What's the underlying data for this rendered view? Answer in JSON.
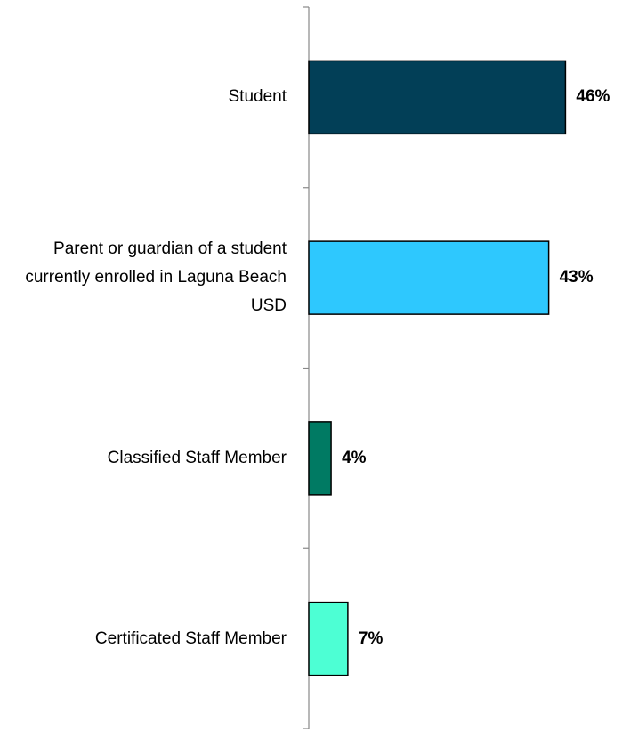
{
  "chart_data": {
    "type": "barh",
    "categories": [
      "Student",
      "Parent or guardian of a student currently enrolled in Laguna Beach USD",
      "Classified Staff Member",
      "Certificated Staff Member"
    ],
    "values": [
      46,
      43,
      4,
      7
    ],
    "value_labels": [
      "46%",
      "43%",
      "4%",
      "7%"
    ],
    "colors": [
      "#023f57",
      "#2ec8fe",
      "#007a63",
      "#4dffd4"
    ]
  }
}
